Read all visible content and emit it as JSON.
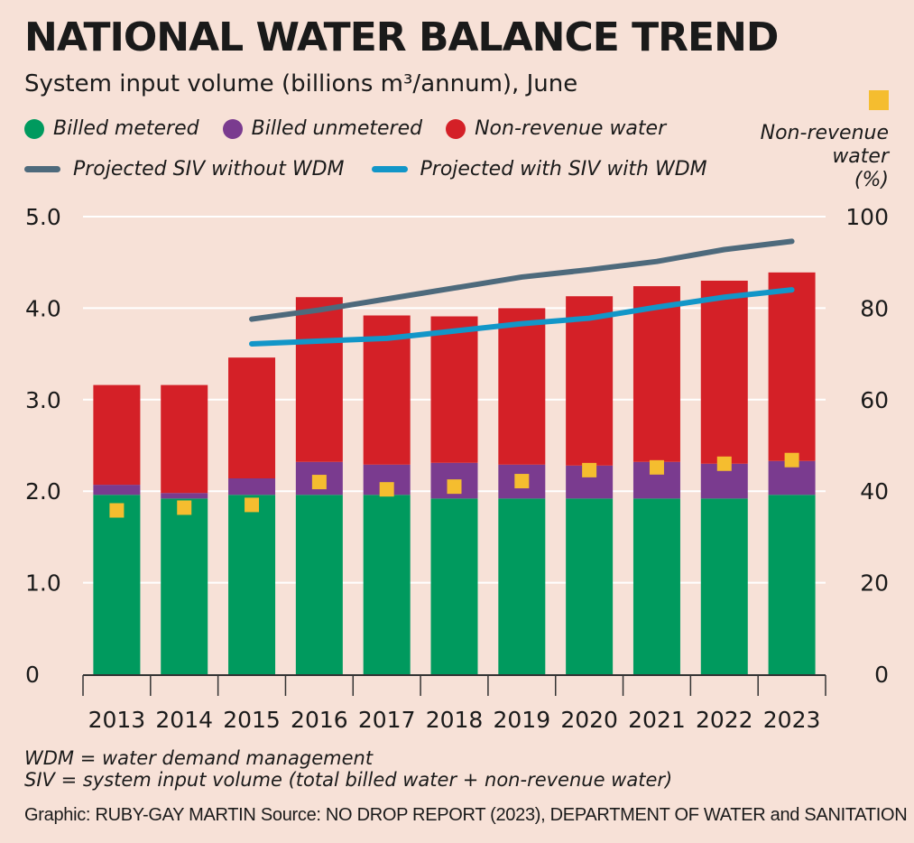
{
  "header": {
    "title": "NATIONAL WATER BALANCE TREND",
    "subtitle": "System input volume (billions m³/annum), June"
  },
  "legend": {
    "billed_metered": "Billed metered",
    "billed_unmetered": "Billed unmetered",
    "non_revenue": "Non-revenue water",
    "projected_without": "Projected SIV without WDM",
    "projected_with": "Projected with SIV with WDM",
    "nrw_pct_line1": "Non-revenue",
    "nrw_pct_line2": "water",
    "nrw_pct_line3": "(%)"
  },
  "colors": {
    "billed_metered": "#009a5e",
    "billed_unmetered": "#7a3b8f",
    "non_revenue": "#d42027",
    "projected_without": "#4e6a7c",
    "projected_with": "#1296c8",
    "nrw_pct": "#f5bd2f",
    "grid": "#ffffff",
    "axis": "#333333"
  },
  "notes": {
    "wdm": "WDM = water demand management",
    "siv": "SIV = system input volume (total billed water + non-revenue water)"
  },
  "credit": "Graphic: RUBY-GAY MARTIN Source: NO DROP REPORT (2023), DEPARTMENT OF WATER and SANITATION",
  "chart_data": {
    "type": "bar",
    "stacked": true,
    "categories": [
      "2013",
      "2014",
      "2015",
      "2016",
      "2017",
      "2018",
      "2019",
      "2020",
      "2021",
      "2022",
      "2023"
    ],
    "series": [
      {
        "name": "Billed metered",
        "values": [
          1.96,
          1.92,
          1.96,
          1.96,
          1.96,
          1.92,
          1.92,
          1.92,
          1.92,
          1.92,
          1.96
        ]
      },
      {
        "name": "Billed unmetered",
        "values": [
          0.11,
          0.06,
          0.18,
          0.36,
          0.33,
          0.39,
          0.37,
          0.36,
          0.4,
          0.38,
          0.37
        ]
      },
      {
        "name": "Non-revenue water",
        "values": [
          1.09,
          1.18,
          1.32,
          1.8,
          1.63,
          1.6,
          1.71,
          1.85,
          1.92,
          2.0,
          2.06
        ]
      }
    ],
    "lines": [
      {
        "name": "Projected SIV without WDM",
        "x": [
          "2015",
          "2016",
          "2017",
          "2018",
          "2019",
          "2020",
          "2021",
          "2022",
          "2023"
        ],
        "values": [
          3.88,
          3.98,
          4.1,
          4.22,
          4.34,
          4.42,
          4.51,
          4.64,
          4.73
        ]
      },
      {
        "name": "Projected with SIV with WDM",
        "x": [
          "2015",
          "2016",
          "2017",
          "2018",
          "2019",
          "2020",
          "2021",
          "2022",
          "2023"
        ],
        "values": [
          3.61,
          3.64,
          3.67,
          3.75,
          3.83,
          3.89,
          4.01,
          4.12,
          4.2
        ]
      }
    ],
    "points": {
      "name": "Non-revenue water (%)",
      "values": [
        35.8,
        36.4,
        37.0,
        42.0,
        40.4,
        41.0,
        42.2,
        44.6,
        45.2,
        46.0,
        46.8
      ]
    },
    "yticks_left": [
      "0",
      "1.0",
      "2.0",
      "3.0",
      "4.0",
      "5.0"
    ],
    "yticks_right": [
      "0",
      "20",
      "40",
      "60",
      "80",
      "100"
    ],
    "ylim": [
      0,
      5
    ],
    "ylim_right": [
      0,
      100
    ],
    "grid": true
  }
}
